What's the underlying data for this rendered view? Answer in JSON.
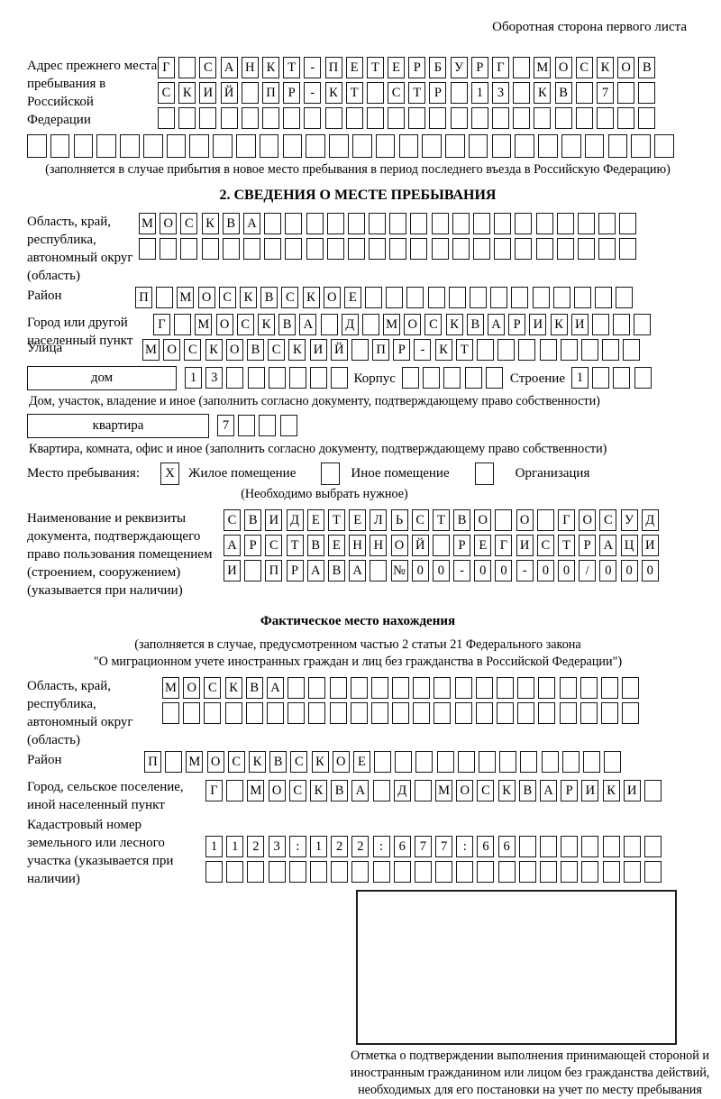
{
  "page": {
    "header_note": "Оборотная сторона первого листа"
  },
  "prev_address": {
    "label": "Адрес прежнего места пребывания в Российской Федерации",
    "rows": [
      "Г САНКТ-ПЕТЕРБУРГ МОСКОВ",
      "СКИЙ ПР-КТ СТР 13 КВ 7  ",
      "                        "
    ],
    "full_row": "                            ",
    "caption": "(заполняется в случае прибытия в новое место пребывания в период последнего въезда в Российскую Федерацию)"
  },
  "section2": {
    "title": "2. СВЕДЕНИЯ О МЕСТЕ ПРЕБЫВАНИЯ",
    "region": {
      "label": "Область, край, республика, автономный округ (область)",
      "rows": [
        "МОСКВА                  ",
        "                        "
      ]
    },
    "district": {
      "label": "Район",
      "row": "П МОСКВСКОЕ             "
    },
    "city": {
      "label": "Город или другой населенный пункт",
      "row": "Г МОСКВА Д МОСКВАРИКИ   "
    },
    "street": {
      "label": "Улица",
      "row": "МОСКОВСКИЙ ПР-КТ        "
    },
    "house": {
      "type_label": "дом",
      "number_cells": "13      ",
      "korpus_label": "Корпус",
      "korpus_cells": "     ",
      "stroenie_label": "Строение",
      "stroenie_cells": "1   "
    },
    "house_caption": "Дом, участок, владение и иное (заполнить согласно документу, подтверждающему право собственности)",
    "apartment": {
      "type_label": "квартира",
      "number_cells": "7   "
    },
    "apartment_caption": "Квартира, комната, офис и иное (заполнить согласно документу, подтверждающему право собственности)",
    "stay_place": {
      "label": "Место пребывания:",
      "options": [
        {
          "label": "Жилое помещение",
          "checked": "X"
        },
        {
          "label": "Иное помещение",
          "checked": " "
        },
        {
          "label": "Организация",
          "checked": " "
        }
      ],
      "note": "(Необходимо выбрать нужное)"
    },
    "document": {
      "label": "Наименование и реквизиты документа, подтверждающего право пользования помещением (строением, сооружением) (указывается при наличии)",
      "rows": [
        "СВИДЕТЕЛЬСТВО О ГОСУД",
        "АРСТВЕННОЙ РЕГИСТРАЦИ",
        "И ПРАВА №00-00-00/000"
      ]
    }
  },
  "actual_location": {
    "title": "Фактическое место нахождения",
    "caption_line1": "(заполняется в случае, предусмотренном частью 2 статьи 21 Федерального закона",
    "caption_line2": "\"О миграционном учете иностранных граждан и лиц без гражданства в Российской Федерации\")",
    "region": {
      "label": "Область, край, республика, автономный округ (область)",
      "rows": [
        "МОСКВА                 ",
        "                       "
      ]
    },
    "district": {
      "label": "Район",
      "row": "П МОСКВСКОЕ            "
    },
    "city": {
      "label": "Город, сельское поселение, иной населенный пункт",
      "row": "Г МОСКВА Д МОСКВАРИКИ "
    },
    "cadastre": {
      "label": "Кадастровый номер земельного или лесного участка (указывается при наличии)",
      "rows": [
        "1123:122:677:66       ",
        "                      "
      ]
    }
  },
  "stamp_box": {
    "caption": "Отметка о подтверждении выполнения принимающей стороной и иностранным гражданином или лицом без гражданства действий, необходимых для его постановки на учет по месту пребывания"
  }
}
